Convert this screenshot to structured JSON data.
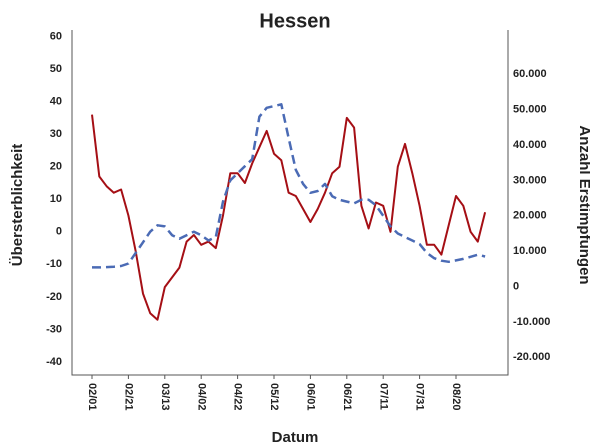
{
  "chart_data": {
    "type": "line",
    "title": "Hessen",
    "x_label": "Datum",
    "y_label": "Übersterblichkeit",
    "y2_label": "Anzahl Erstimpfungen",
    "categories": [
      "02/01",
      null,
      null,
      null,
      null,
      "02/21",
      null,
      null,
      null,
      null,
      "03/13",
      null,
      null,
      null,
      null,
      "04/02",
      null,
      null,
      null,
      null,
      "04/22",
      null,
      null,
      null,
      null,
      "05/12",
      null,
      null,
      null,
      null,
      "06/01",
      null,
      null,
      null,
      null,
      "06/21",
      null,
      null,
      null,
      null,
      "07/11",
      null,
      null,
      null,
      null,
      "07/31",
      null,
      null,
      null,
      null,
      "08/20",
      null,
      null,
      null,
      null
    ],
    "series": [
      {
        "color": "#a50f15",
        "line_style": "solid",
        "axis": "y",
        "values": [
          36,
          17,
          14,
          12,
          13,
          5,
          -6,
          -19,
          -25,
          -27,
          -17,
          -14,
          -11,
          -3,
          -1,
          -4,
          -3,
          -5,
          5,
          18,
          18,
          15,
          21,
          26,
          31,
          24,
          22,
          12,
          11,
          7,
          3,
          7,
          12,
          18,
          20,
          35,
          32,
          8,
          1,
          9,
          8,
          0,
          20,
          27,
          18,
          8,
          -4,
          -4,
          -7,
          2,
          11,
          8,
          0,
          -3,
          6
        ]
      },
      {
        "color": "#4b6bb5",
        "line_style": "dashed",
        "axis": "y2",
        "values": [
          5400,
          5400,
          5500,
          5600,
          5800,
          6500,
          9500,
          12500,
          15500,
          17300,
          17000,
          14500,
          13500,
          14500,
          15500,
          14500,
          13000,
          14000,
          24000,
          30000,
          32000,
          34000,
          36000,
          48000,
          50500,
          51000,
          51500,
          42000,
          33000,
          29000,
          26500,
          27000,
          29000,
          25500,
          24500,
          24000,
          23500,
          24500,
          24500,
          23000,
          20000,
          17000,
          15000,
          14000,
          13000,
          12000,
          9500,
          8000,
          7300,
          7000,
          7400,
          7800,
          8400,
          9000,
          8500
        ]
      }
    ],
    "ylim": [
      -44,
      62
    ],
    "yticks": [
      -40,
      -30,
      -20,
      -10,
      0,
      10,
      20,
      30,
      40,
      50,
      60
    ],
    "y2lim": [
      -25000,
      72500
    ],
    "y2ticks": [
      {
        "value": -20000,
        "label": "-20.000"
      },
      {
        "value": -10000,
        "label": "-10.000"
      },
      0,
      {
        "value": 10000,
        "label": "10.000"
      },
      {
        "value": 20000,
        "label": "20.000"
      },
      {
        "value": 30000,
        "label": "30.000"
      },
      {
        "value": 40000,
        "label": "40.000"
      },
      {
        "value": 50000,
        "label": "50.000"
      },
      {
        "value": 60000,
        "label": "60.000"
      }
    ],
    "grid": false
  }
}
